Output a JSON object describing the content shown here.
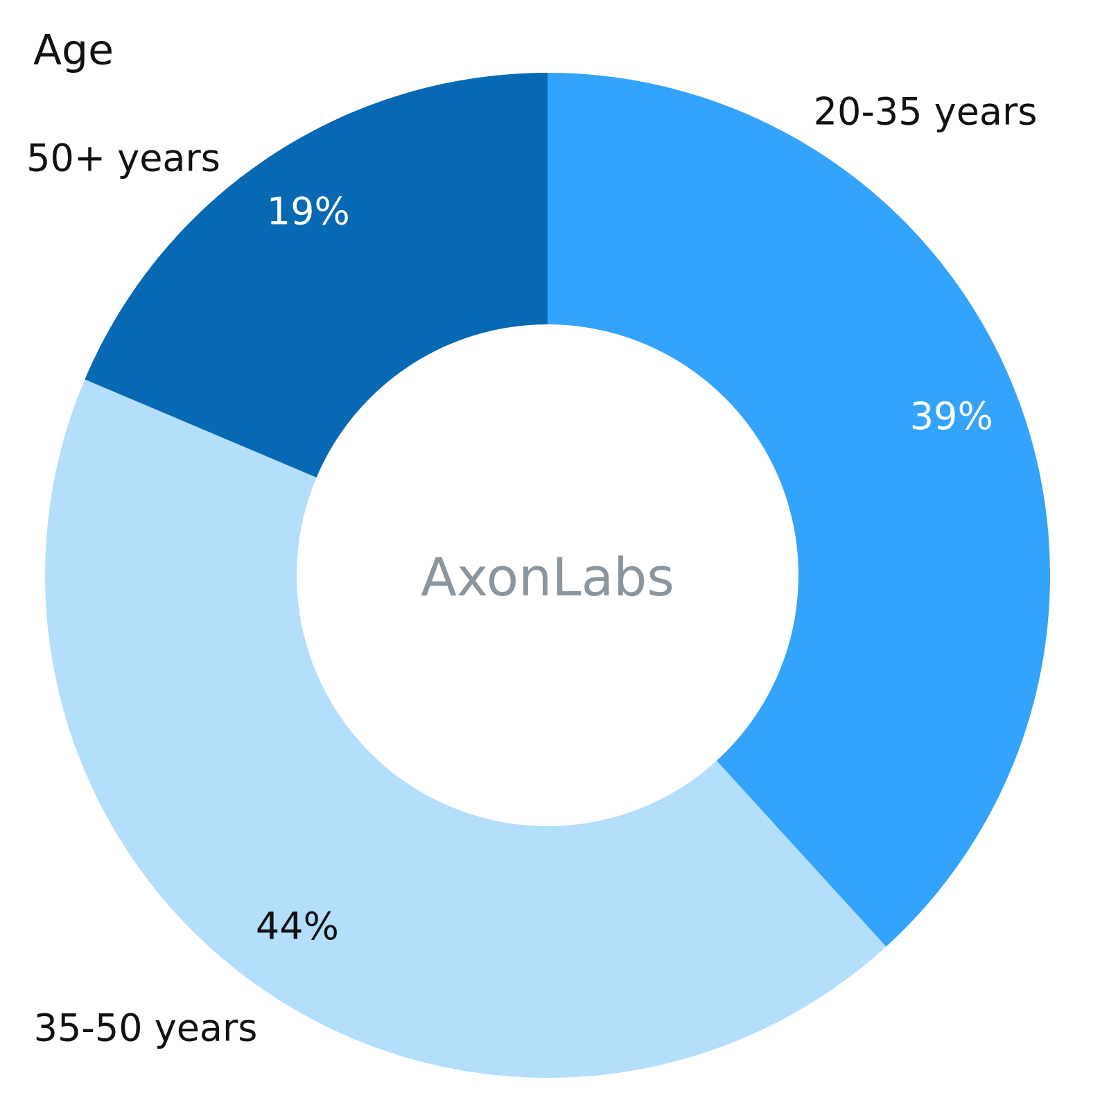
{
  "chart_data": {
    "type": "donut",
    "title": "Age",
    "center_text": "AxonLabs",
    "categories": [
      "20-35 years",
      "35-50 years",
      "50+ years"
    ],
    "values": [
      39,
      44,
      19
    ],
    "value_labels": [
      "39%",
      "44%",
      "19%"
    ],
    "colors": [
      "#33a3fb",
      "#b3defc",
      "#0769b3"
    ]
  }
}
